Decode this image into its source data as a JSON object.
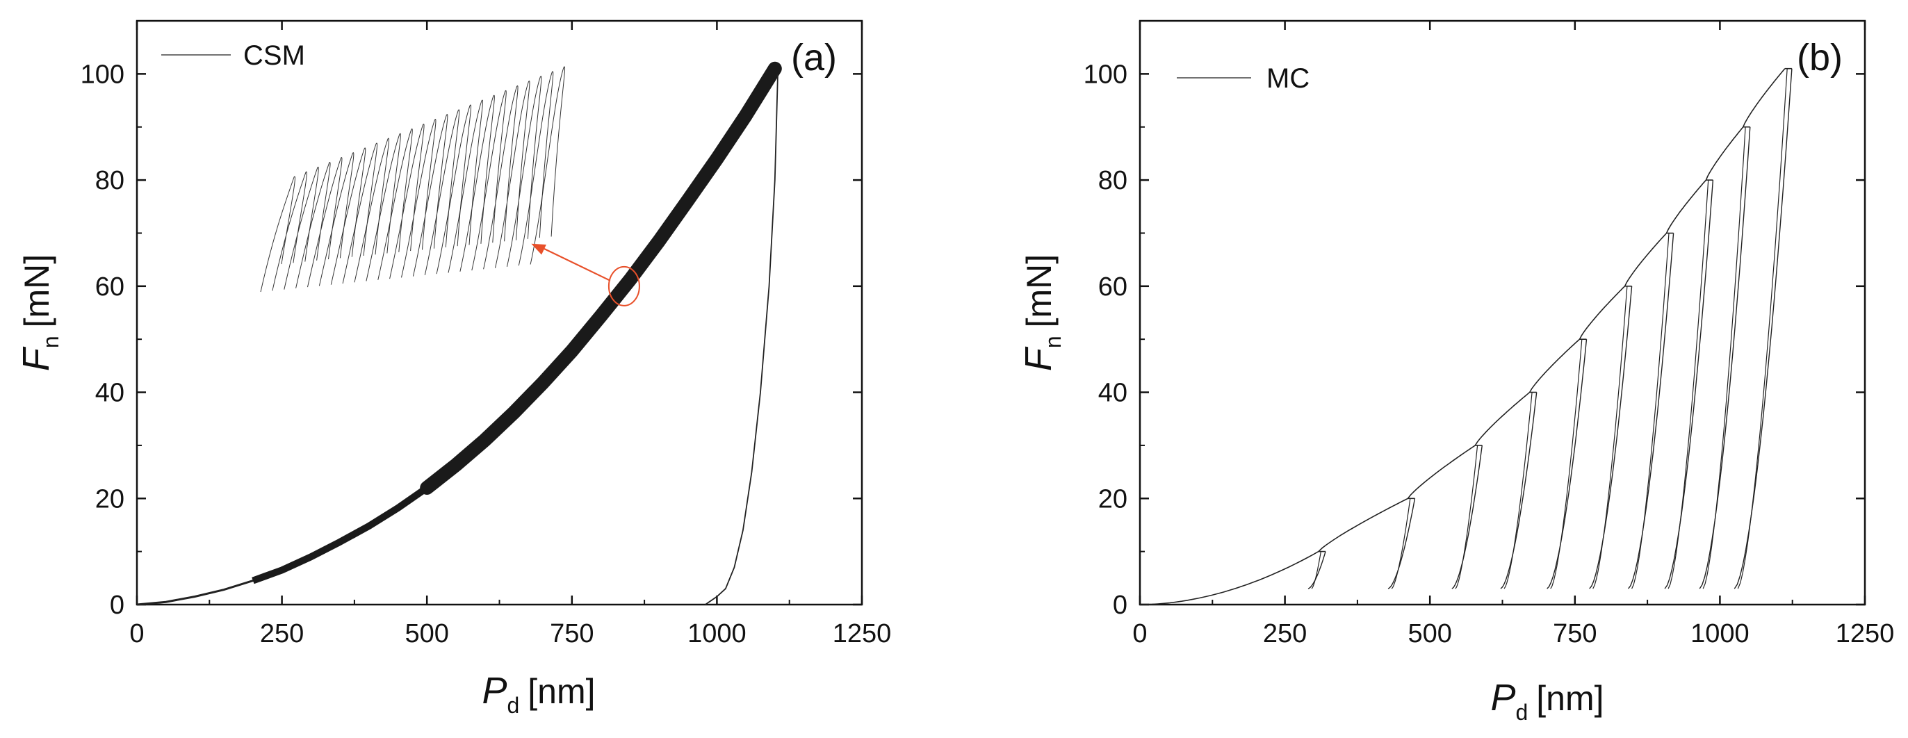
{
  "chart_data": [
    {
      "type": "line",
      "panel_label": "(a)",
      "legend": [
        "CSM"
      ],
      "xlabel": {
        "var": "P",
        "sub": "d",
        "unit": "[nm]"
      },
      "ylabel": {
        "var": "F",
        "sub": "n",
        "unit": "[mN]"
      },
      "xlim": [
        0,
        1250
      ],
      "ylim": [
        0,
        110
      ],
      "xticks": [
        0,
        250,
        500,
        750,
        1000,
        1250
      ],
      "yticks": [
        0,
        20,
        40,
        60,
        80,
        100
      ],
      "xtick_labels": [
        "0",
        "250",
        "500",
        "750",
        "1000",
        "1250"
      ],
      "ytick_labels": [
        "0",
        "20",
        "40",
        "60",
        "80",
        "100"
      ],
      "grid": false,
      "legend_position": "top-left",
      "series": [
        {
          "name": "CSM loading",
          "x": [
            0,
            50,
            100,
            150,
            200,
            250,
            300,
            350,
            400,
            450,
            500,
            550,
            600,
            650,
            700,
            750,
            800,
            850,
            900,
            950,
            1000,
            1050,
            1100
          ],
          "y": [
            0,
            0.5,
            1.5,
            2.8,
            4.5,
            6.5,
            9,
            11.8,
            14.8,
            18.2,
            22,
            26.3,
            31,
            36.2,
            41.8,
            47.8,
            54.4,
            61.2,
            68.5,
            76.2,
            84,
            92.2,
            101
          ]
        },
        {
          "name": "CSM unloading",
          "x": [
            1105,
            1100,
            1090,
            1075,
            1060,
            1045,
            1030,
            1015,
            1000,
            980
          ],
          "y": [
            100,
            80,
            60,
            40,
            25,
            14,
            7,
            3,
            1.5,
            0
          ]
        }
      ],
      "inset": {
        "description": "zoom of oscillating CSM segment near 60 mN",
        "marker_at": {
          "x": 840,
          "y": 60
        },
        "arrow_to": {
          "x": 680,
          "y": 68
        }
      }
    },
    {
      "type": "line",
      "panel_label": "(b)",
      "legend": [
        "MC"
      ],
      "xlabel": {
        "var": "P",
        "sub": "d",
        "unit": "[nm]"
      },
      "ylabel": {
        "var": "F",
        "sub": "n",
        "unit": "[mN]"
      },
      "xlim": [
        0,
        1250
      ],
      "ylim": [
        0,
        110
      ],
      "xticks": [
        0,
        250,
        500,
        750,
        1000,
        1250
      ],
      "yticks": [
        0,
        20,
        40,
        60,
        80,
        100
      ],
      "xtick_labels": [
        "0",
        "250",
        "500",
        "750",
        "1000",
        "1250"
      ],
      "ytick_labels": [
        "0",
        "20",
        "40",
        "60",
        "80",
        "100"
      ],
      "grid": false,
      "legend_position": "top-left",
      "cycles": [
        {
          "peak_load": 10,
          "peak_depth": 308,
          "unload_end_depth": 290
        },
        {
          "peak_load": 20,
          "peak_depth": 462,
          "unload_end_depth": 428
        },
        {
          "peak_load": 30,
          "peak_depth": 578,
          "unload_end_depth": 538
        },
        {
          "peak_load": 40,
          "peak_depth": 672,
          "unload_end_depth": 622
        },
        {
          "peak_load": 50,
          "peak_depth": 758,
          "unload_end_depth": 702
        },
        {
          "peak_load": 60,
          "peak_depth": 836,
          "unload_end_depth": 775
        },
        {
          "peak_load": 70,
          "peak_depth": 908,
          "unload_end_depth": 842
        },
        {
          "peak_load": 80,
          "peak_depth": 976,
          "unload_end_depth": 905
        },
        {
          "peak_load": 90,
          "peak_depth": 1040,
          "unload_end_depth": 965
        },
        {
          "peak_load": 101,
          "peak_depth": 1112,
          "unload_end_depth": 1025
        }
      ],
      "unload_end_load": 3
    }
  ],
  "colors": {
    "line": "#222222",
    "axis": "#111111",
    "marker": "#e8502a"
  }
}
